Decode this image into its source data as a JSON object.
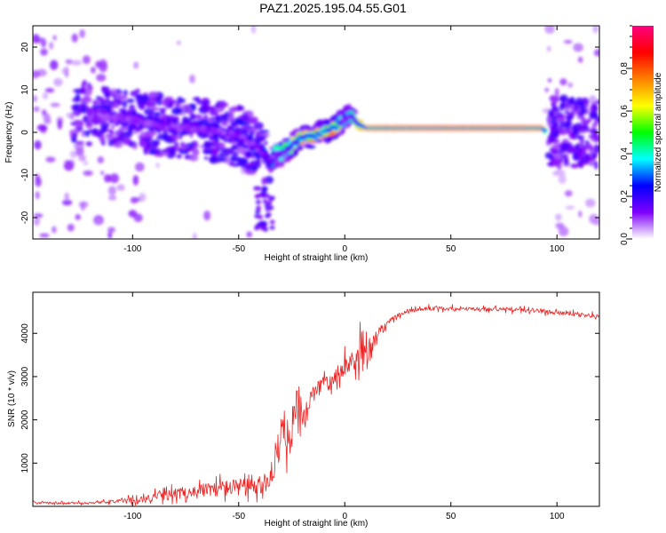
{
  "title": "PAZ1.2025.195.04.55.G01",
  "colors": {
    "snr_line": "#ee2222",
    "frame": "#000000"
  },
  "chart_data": [
    {
      "type": "heatmap",
      "title": "PAZ1.2025.195.04.55.G01",
      "xlabel": "Height of straight line (km)",
      "ylabel": "Frequency (Hz)",
      "xlim": [
        -147,
        120
      ],
      "ylim": [
        -25,
        25
      ],
      "xticks": [
        -100,
        -50,
        0,
        50,
        100
      ],
      "yticks": [
        -20,
        -10,
        0,
        10,
        20
      ],
      "colorbar": {
        "label": "Normalized spectral amplitude",
        "range": [
          0,
          1
        ],
        "ticks": [
          0.0,
          0.2,
          0.4,
          0.6,
          0.8
        ],
        "colormap": [
          "#ffffff",
          "#7f00ff",
          "#0000ff",
          "#00ffff",
          "#00ff00",
          "#ffff00",
          "#ff8000",
          "#ff0000",
          "#ff0080"
        ]
      },
      "ridge": {
        "x": [
          -120,
          -100,
          -90,
          -80,
          -70,
          -60,
          -50,
          -40,
          -35,
          -33,
          -30,
          -25,
          -20,
          -15,
          -10,
          -5,
          0,
          3,
          6,
          10,
          20,
          40,
          60,
          80,
          93,
          95
        ],
        "y": [
          4,
          3,
          2,
          1,
          1,
          0,
          -1,
          -4,
          -7,
          -5,
          -5,
          -3,
          -1,
          -1,
          0,
          1,
          3,
          4,
          2,
          1,
          1,
          1,
          1,
          1,
          1,
          0
        ],
        "amp": [
          0.15,
          0.2,
          0.2,
          0.22,
          0.2,
          0.2,
          0.22,
          0.25,
          0.3,
          0.4,
          0.45,
          0.6,
          0.75,
          0.8,
          0.85,
          0.9,
          0.3,
          0.45,
          0.7,
          0.85,
          0.9,
          0.95,
          0.95,
          0.95,
          0.9,
          0.3
        ]
      }
    },
    {
      "type": "line",
      "xlabel": "Height of straight line (km)",
      "ylabel": "SNR (10 * v/v)",
      "xlim": [
        -147,
        120
      ],
      "ylim": [
        0,
        4950
      ],
      "xticks": [
        -100,
        -50,
        0,
        50,
        100
      ],
      "yticks": [
        1000,
        2000,
        3000,
        4000
      ],
      "envelope": {
        "x": [
          -147,
          -130,
          -115,
          -105,
          -95,
          -85,
          -75,
          -65,
          -55,
          -45,
          -38,
          -33,
          -29,
          -26,
          -22,
          -19,
          -16,
          -14,
          -10,
          -6,
          -3,
          0,
          3,
          6,
          8,
          10,
          13,
          15,
          18,
          22,
          26,
          30,
          36,
          42,
          50,
          60,
          70,
          80,
          90,
          100,
          110,
          120
        ],
        "mean": [
          80,
          70,
          90,
          130,
          170,
          250,
          330,
          380,
          430,
          460,
          440,
          900,
          2000,
          1400,
          2500,
          1800,
          2700,
          2600,
          2900,
          3000,
          3100,
          3250,
          3350,
          3500,
          3700,
          3300,
          3700,
          3950,
          4150,
          4300,
          4450,
          4520,
          4560,
          4580,
          4570,
          4560,
          4560,
          4550,
          4520,
          4480,
          4430,
          4400
        ],
        "amp": [
          60,
          50,
          60,
          100,
          160,
          250,
          300,
          350,
          420,
          450,
          400,
          700,
          1100,
          800,
          900,
          900,
          500,
          500,
          500,
          450,
          500,
          450,
          500,
          700,
          1200,
          900,
          500,
          300,
          200,
          150,
          110,
          100,
          100,
          100,
          100,
          100,
          100,
          110,
          100,
          100,
          110,
          100
        ]
      }
    }
  ]
}
